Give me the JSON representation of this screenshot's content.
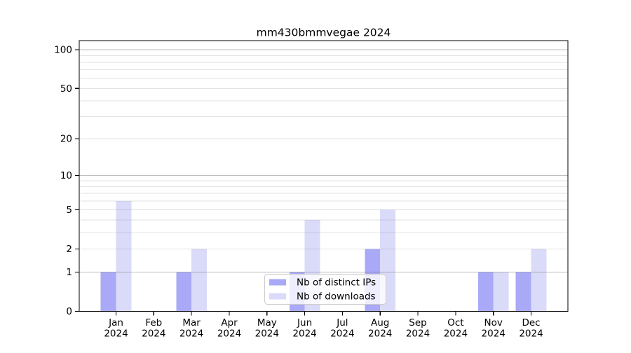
{
  "chart_data": {
    "type": "bar",
    "title": "mm430bmmvegae 2024",
    "categories": [
      "Jan",
      "Feb",
      "Mar",
      "Apr",
      "May",
      "Jun",
      "Jul",
      "Aug",
      "Sep",
      "Oct",
      "Nov",
      "Dec"
    ],
    "x_year_label": "2024",
    "series": [
      {
        "name": "Nb of distinct IPs",
        "color": "#a9a9f7",
        "values": [
          1,
          0,
          1,
          0,
          0,
          1,
          0,
          2,
          0,
          0,
          1,
          1
        ]
      },
      {
        "name": "Nb of downloads",
        "color": "#dadaf9",
        "values": [
          6,
          0,
          2,
          0,
          0,
          4,
          0,
          5,
          0,
          0,
          1,
          2
        ]
      }
    ],
    "yscale": "log1p",
    "ylim": [
      0,
      100
    ],
    "ytick_values": [
      0,
      1,
      2,
      5,
      10,
      20,
      50,
      100
    ],
    "ytick_labels": [
      "0",
      "1",
      "2",
      "5",
      "10",
      "20",
      "50",
      "100"
    ],
    "major_grid_values": [
      1,
      10,
      100
    ],
    "minor_grid_values": [
      2,
      3,
      4,
      5,
      6,
      7,
      8,
      9,
      20,
      30,
      40,
      50,
      60,
      70,
      80,
      90
    ],
    "grid": true,
    "legend": {
      "position": "lower center",
      "items": [
        "Nb of distinct IPs",
        "Nb of downloads"
      ]
    }
  },
  "colors": {
    "background": "#ffffff",
    "axis": "#000000",
    "bar_distinct_ips": "#a9a9f7",
    "bar_downloads": "#dadaf9",
    "major_grid": "#cccccc",
    "minor_grid": "#e8e8e8",
    "legend_border": "#cccccc"
  }
}
